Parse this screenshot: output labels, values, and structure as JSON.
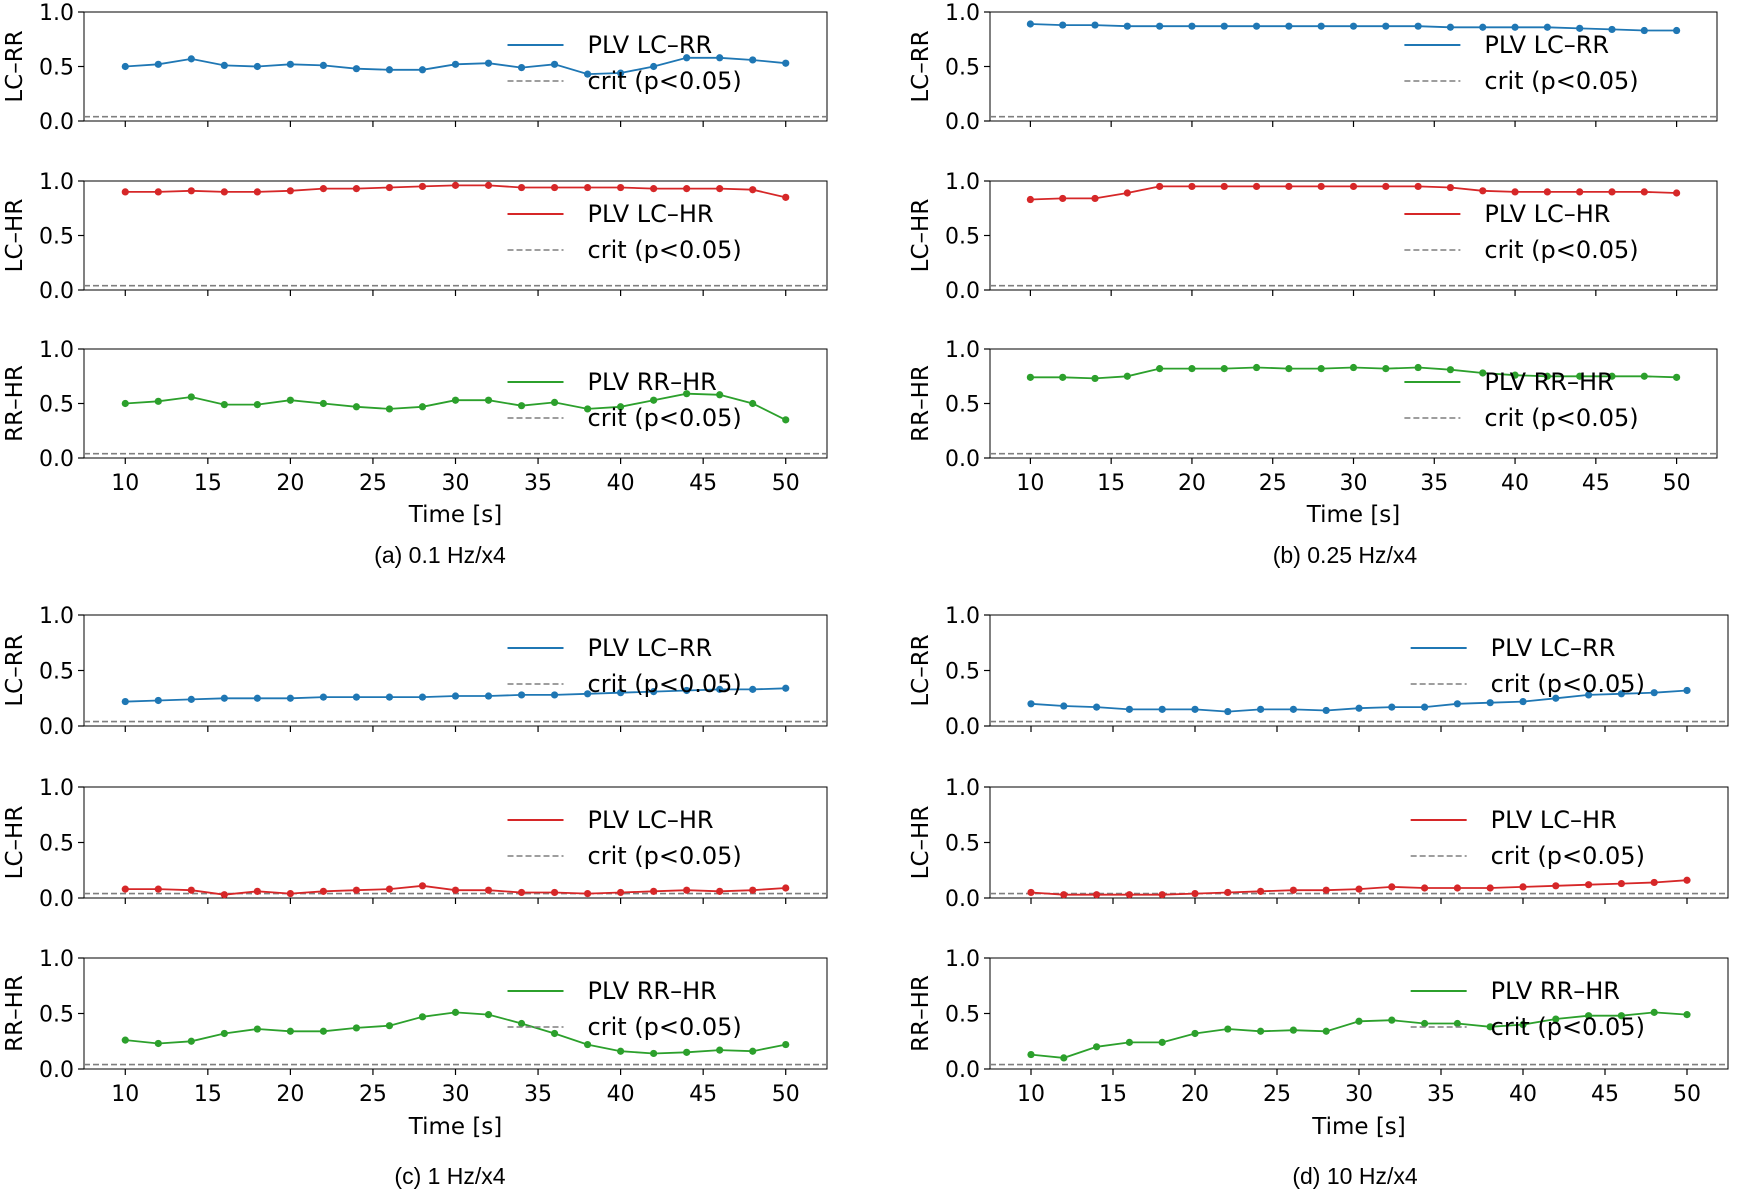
{
  "chart_data": [
    {
      "caption": "(a) 0.1 Hz/x4",
      "type": "line",
      "xlabel": "Time [s]",
      "xlim": [
        7.5,
        52.5
      ],
      "xticks": [
        10,
        15,
        20,
        25,
        30,
        35,
        40,
        45,
        50
      ],
      "subplots": [
        {
          "ylabel": "LC–RR",
          "ylim": [
            0,
            1.0
          ],
          "yticks": [
            "0.0",
            "0.5",
            "1.0"
          ],
          "color": "#1f77b4",
          "series_name": "PLV LC–RR",
          "crit_name": "crit (p<0.05)",
          "crit": 0.04,
          "x": [
            10,
            12,
            14,
            16,
            18,
            20,
            22,
            24,
            26,
            28,
            30,
            32,
            34,
            36,
            38,
            40,
            42,
            44,
            46,
            48,
            50
          ],
          "values": [
            0.5,
            0.52,
            0.57,
            0.51,
            0.5,
            0.52,
            0.51,
            0.48,
            0.47,
            0.47,
            0.52,
            0.53,
            0.49,
            0.52,
            0.43,
            0.44,
            0.5,
            0.58,
            0.58,
            0.56,
            0.53
          ]
        },
        {
          "ylabel": "LC–HR",
          "ylim": [
            0,
            1.0
          ],
          "yticks": [
            "0.0",
            "0.5",
            "1.0"
          ],
          "color": "#d62728",
          "series_name": "PLV LC–HR",
          "crit_name": "crit (p<0.05)",
          "crit": 0.04,
          "x": [
            10,
            12,
            14,
            16,
            18,
            20,
            22,
            24,
            26,
            28,
            30,
            32,
            34,
            36,
            38,
            40,
            42,
            44,
            46,
            48,
            50
          ],
          "values": [
            0.9,
            0.9,
            0.91,
            0.9,
            0.9,
            0.91,
            0.93,
            0.93,
            0.94,
            0.95,
            0.96,
            0.96,
            0.94,
            0.94,
            0.94,
            0.94,
            0.93,
            0.93,
            0.93,
            0.92,
            0.85
          ]
        },
        {
          "ylabel": "RR–HR",
          "ylim": [
            0,
            1.0
          ],
          "yticks": [
            "0.0",
            "0.5",
            "1.0"
          ],
          "color": "#2ca02c",
          "series_name": "PLV RR–HR",
          "crit_name": "crit (p<0.05)",
          "crit": 0.04,
          "x": [
            10,
            12,
            14,
            16,
            18,
            20,
            22,
            24,
            26,
            28,
            30,
            32,
            34,
            36,
            38,
            40,
            42,
            44,
            46,
            48,
            50
          ],
          "values": [
            0.5,
            0.52,
            0.56,
            0.49,
            0.49,
            0.53,
            0.5,
            0.47,
            0.45,
            0.47,
            0.53,
            0.53,
            0.48,
            0.51,
            0.45,
            0.47,
            0.53,
            0.59,
            0.58,
            0.5,
            0.35
          ]
        }
      ]
    },
    {
      "caption": "(b) 0.25 Hz/x4",
      "type": "line",
      "xlabel": "Time [s]",
      "xlim": [
        7.5,
        52.5
      ],
      "xticks": [
        10,
        15,
        20,
        25,
        30,
        35,
        40,
        45,
        50
      ],
      "subplots": [
        {
          "ylabel": "LC–RR",
          "ylim": [
            0,
            1.0
          ],
          "yticks": [
            "0.0",
            "0.5",
            "1.0"
          ],
          "color": "#1f77b4",
          "series_name": "PLV LC–RR",
          "crit_name": "crit (p<0.05)",
          "crit": 0.04,
          "x": [
            10,
            12,
            14,
            16,
            18,
            20,
            22,
            24,
            26,
            28,
            30,
            32,
            34,
            36,
            38,
            40,
            42,
            44,
            46,
            48,
            50
          ],
          "values": [
            0.89,
            0.88,
            0.88,
            0.87,
            0.87,
            0.87,
            0.87,
            0.87,
            0.87,
            0.87,
            0.87,
            0.87,
            0.87,
            0.86,
            0.86,
            0.86,
            0.86,
            0.85,
            0.84,
            0.83,
            0.83
          ]
        },
        {
          "ylabel": "LC–HR",
          "ylim": [
            0,
            1.0
          ],
          "yticks": [
            "0.0",
            "0.5",
            "1.0"
          ],
          "color": "#d62728",
          "series_name": "PLV LC–HR",
          "crit_name": "crit (p<0.05)",
          "crit": 0.04,
          "x": [
            10,
            12,
            14,
            16,
            18,
            20,
            22,
            24,
            26,
            28,
            30,
            32,
            34,
            36,
            38,
            40,
            42,
            44,
            46,
            48,
            50
          ],
          "values": [
            0.83,
            0.84,
            0.84,
            0.89,
            0.95,
            0.95,
            0.95,
            0.95,
            0.95,
            0.95,
            0.95,
            0.95,
            0.95,
            0.94,
            0.91,
            0.9,
            0.9,
            0.9,
            0.9,
            0.9,
            0.89
          ]
        },
        {
          "ylabel": "RR–HR",
          "ylim": [
            0,
            1.0
          ],
          "yticks": [
            "0.0",
            "0.5",
            "1.0"
          ],
          "color": "#2ca02c",
          "series_name": "PLV RR–HR",
          "crit_name": "crit (p<0.05)",
          "crit": 0.04,
          "x": [
            10,
            12,
            14,
            16,
            18,
            20,
            22,
            24,
            26,
            28,
            30,
            32,
            34,
            36,
            38,
            40,
            42,
            44,
            46,
            48,
            50
          ],
          "values": [
            0.74,
            0.74,
            0.73,
            0.75,
            0.82,
            0.82,
            0.82,
            0.83,
            0.82,
            0.82,
            0.83,
            0.82,
            0.83,
            0.81,
            0.78,
            0.76,
            0.75,
            0.75,
            0.75,
            0.75,
            0.74
          ]
        }
      ]
    },
    {
      "caption": "(c) 1 Hz/x4",
      "type": "line",
      "xlabel": "Time [s]",
      "xlim": [
        7.5,
        52.5
      ],
      "xticks": [
        10,
        15,
        20,
        25,
        30,
        35,
        40,
        45,
        50
      ],
      "subplots": [
        {
          "ylabel": "LC–RR",
          "ylim": [
            0,
            1.0
          ],
          "yticks": [
            "0.0",
            "0.5",
            "1.0"
          ],
          "color": "#1f77b4",
          "series_name": "PLV LC–RR",
          "crit_name": "crit (p<0.05)",
          "crit": 0.04,
          "x": [
            10,
            12,
            14,
            16,
            18,
            20,
            22,
            24,
            26,
            28,
            30,
            32,
            34,
            36,
            38,
            40,
            42,
            44,
            46,
            48,
            50
          ],
          "values": [
            0.22,
            0.23,
            0.24,
            0.25,
            0.25,
            0.25,
            0.26,
            0.26,
            0.26,
            0.26,
            0.27,
            0.27,
            0.28,
            0.28,
            0.29,
            0.3,
            0.31,
            0.32,
            0.33,
            0.33,
            0.34
          ]
        },
        {
          "ylabel": "LC–HR",
          "ylim": [
            0,
            1.0
          ],
          "yticks": [
            "0.0",
            "0.5",
            "1.0"
          ],
          "color": "#d62728",
          "series_name": "PLV LC–HR",
          "crit_name": "crit (p<0.05)",
          "crit": 0.04,
          "x": [
            10,
            12,
            14,
            16,
            18,
            20,
            22,
            24,
            26,
            28,
            30,
            32,
            34,
            36,
            38,
            40,
            42,
            44,
            46,
            48,
            50
          ],
          "values": [
            0.08,
            0.08,
            0.07,
            0.03,
            0.06,
            0.04,
            0.06,
            0.07,
            0.08,
            0.11,
            0.07,
            0.07,
            0.05,
            0.05,
            0.04,
            0.05,
            0.06,
            0.07,
            0.06,
            0.07,
            0.09
          ]
        },
        {
          "ylabel": "RR–HR",
          "ylim": [
            0,
            1.0
          ],
          "yticks": [
            "0.0",
            "0.5",
            "1.0"
          ],
          "color": "#2ca02c",
          "series_name": "PLV RR–HR",
          "crit_name": "crit (p<0.05)",
          "crit": 0.04,
          "x": [
            10,
            12,
            14,
            16,
            18,
            20,
            22,
            24,
            26,
            28,
            30,
            32,
            34,
            36,
            38,
            40,
            42,
            44,
            46,
            48,
            50
          ],
          "values": [
            0.26,
            0.23,
            0.25,
            0.32,
            0.36,
            0.34,
            0.34,
            0.37,
            0.39,
            0.47,
            0.51,
            0.49,
            0.41,
            0.32,
            0.22,
            0.16,
            0.14,
            0.15,
            0.17,
            0.16,
            0.22
          ]
        }
      ]
    },
    {
      "caption": "(d) 10 Hz/x4",
      "type": "line",
      "xlabel": "Time [s]",
      "xlim": [
        7.5,
        52.5
      ],
      "xticks": [
        10,
        15,
        20,
        25,
        30,
        35,
        40,
        45,
        50
      ],
      "subplots": [
        {
          "ylabel": "LC–RR",
          "ylim": [
            0,
            1.0
          ],
          "yticks": [
            "0.0",
            "0.5",
            "1.0"
          ],
          "color": "#1f77b4",
          "series_name": "PLV LC–RR",
          "crit_name": "crit (p<0.05)",
          "crit": 0.04,
          "x": [
            10,
            12,
            14,
            16,
            18,
            20,
            22,
            24,
            26,
            28,
            30,
            32,
            34,
            36,
            38,
            40,
            42,
            44,
            46,
            48,
            50
          ],
          "values": [
            0.2,
            0.18,
            0.17,
            0.15,
            0.15,
            0.15,
            0.13,
            0.15,
            0.15,
            0.14,
            0.16,
            0.17,
            0.17,
            0.2,
            0.21,
            0.22,
            0.25,
            0.28,
            0.29,
            0.3,
            0.32
          ]
        },
        {
          "ylabel": "LC–HR",
          "ylim": [
            0,
            1.0
          ],
          "yticks": [
            "0.0",
            "0.5",
            "1.0"
          ],
          "color": "#d62728",
          "series_name": "PLV LC–HR",
          "crit_name": "crit (p<0.05)",
          "crit": 0.04,
          "x": [
            10,
            12,
            14,
            16,
            18,
            20,
            22,
            24,
            26,
            28,
            30,
            32,
            34,
            36,
            38,
            40,
            42,
            44,
            46,
            48,
            50
          ],
          "values": [
            0.05,
            0.03,
            0.03,
            0.03,
            0.03,
            0.04,
            0.05,
            0.06,
            0.07,
            0.07,
            0.08,
            0.1,
            0.09,
            0.09,
            0.09,
            0.1,
            0.11,
            0.12,
            0.13,
            0.14,
            0.16
          ]
        },
        {
          "ylabel": "RR–HR",
          "ylim": [
            0,
            1.0
          ],
          "yticks": [
            "0.0",
            "0.5",
            "1.0"
          ],
          "color": "#2ca02c",
          "series_name": "PLV RR–HR",
          "crit_name": "crit (p<0.05)",
          "crit": 0.04,
          "x": [
            10,
            12,
            14,
            16,
            18,
            20,
            22,
            24,
            26,
            28,
            30,
            32,
            34,
            36,
            38,
            40,
            42,
            44,
            46,
            48,
            50
          ],
          "values": [
            0.13,
            0.1,
            0.2,
            0.24,
            0.24,
            0.32,
            0.36,
            0.34,
            0.35,
            0.34,
            0.43,
            0.44,
            0.41,
            0.41,
            0.38,
            0.4,
            0.45,
            0.48,
            0.48,
            0.51,
            0.49
          ]
        }
      ]
    }
  ]
}
